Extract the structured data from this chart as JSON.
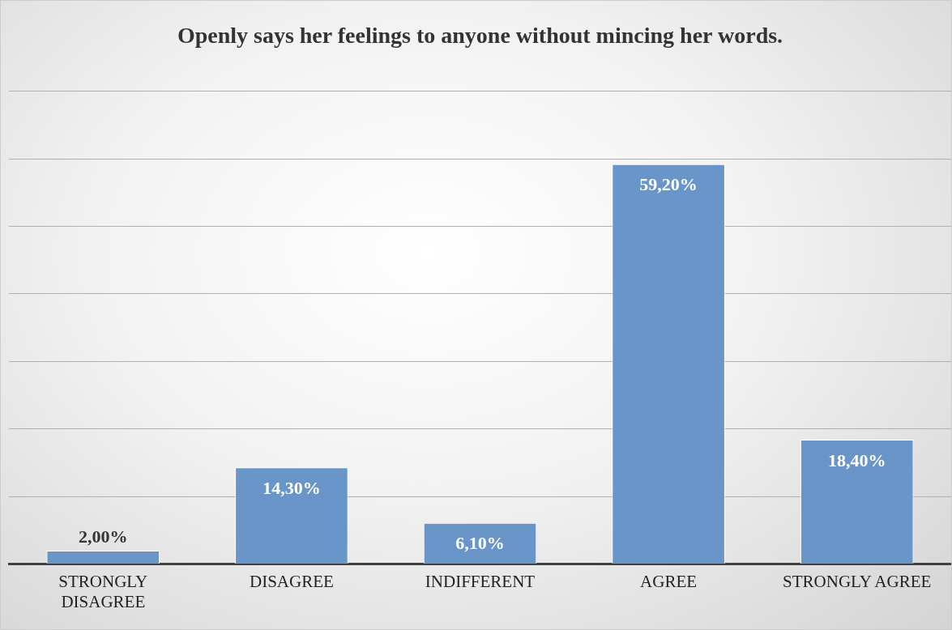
{
  "chart_data": {
    "type": "bar",
    "title": "Openly says her feelings to anyone without mincing her words.",
    "categories": [
      "STRONGLY DISAGREE",
      "DISAGREE",
      "INDIFFERENT",
      "AGREE",
      "STRONGLY AGREE"
    ],
    "values": [
      2.0,
      14.3,
      6.1,
      59.2,
      18.4
    ],
    "value_labels": [
      "2,00%",
      "14,30%",
      "6,10%",
      "59,20%",
      "18,40%"
    ],
    "color": "#6a95c9",
    "ylim": [
      0,
      70
    ],
    "yticks": [
      {
        "value": 0,
        "label": null
      },
      {
        "value": 10,
        "label": null
      },
      {
        "value": 20,
        "label": null
      },
      {
        "value": 30,
        "label": null
      },
      {
        "value": 40,
        "label": null
      },
      {
        "value": 50,
        "label": null
      },
      {
        "value": 60,
        "label": null
      },
      {
        "value": 70,
        "label": null
      }
    ],
    "grid": "y",
    "tick_labels": "x",
    "legend": false
  }
}
